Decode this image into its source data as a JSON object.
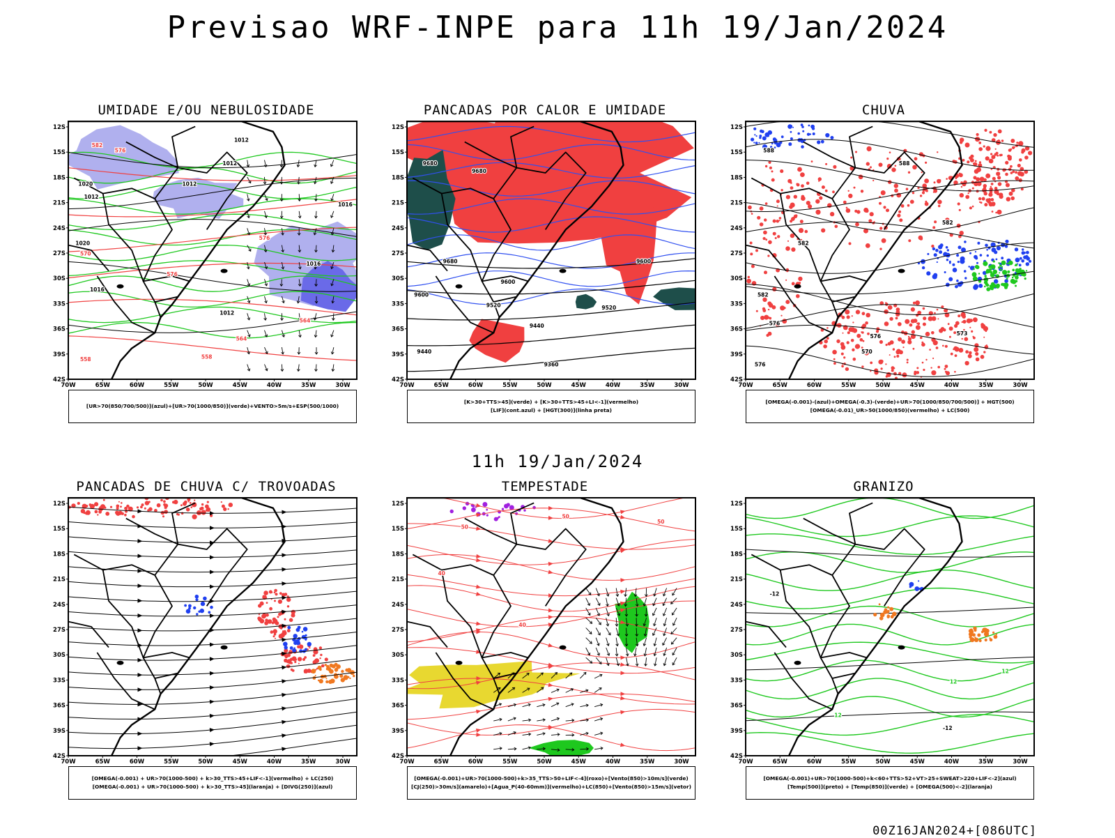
{
  "main_title": "Previsao WRF-INPE  para 11h 19/Jan/2024",
  "mid_date": "11h 19/Jan/2024",
  "footer": "00Z16JAN2024+[086UTC]",
  "colors": {
    "humid_upper": "#b0b0ee",
    "green_contour": "#1ec81e",
    "red_fill": "#f04040",
    "blue_fill": "#2040f0",
    "dark_teal": "#1e4e4a",
    "yellow": "#e8d830",
    "orange": "#f07820",
    "purple": "#a020e0"
  },
  "axes": {
    "lat_labels": [
      "12S",
      "15S",
      "18S",
      "21S",
      "24S",
      "27S",
      "30S",
      "33S",
      "36S",
      "39S",
      "42S"
    ],
    "lon_labels": [
      "70W",
      "65W",
      "60W",
      "55W",
      "50W",
      "45W",
      "40W",
      "35W",
      "30W"
    ]
  },
  "panels": [
    {
      "title": "UMIDADE E/OU NEBULOSIDADE",
      "legend": [
        "[UR>70(850/700/500)](azul)+[UR>70(1000/850)](verde)+VENTO>5m/s+ESP(500/1000)"
      ],
      "contour_labels": [
        "1012",
        "1012",
        "1012",
        "1012",
        "1012",
        "1016",
        "1016",
        "1016",
        "576",
        "576",
        "576",
        "570",
        "564",
        "564",
        "558",
        "558",
        "582",
        "1020",
        "1020"
      ]
    },
    {
      "title": "PANCADAS POR CALOR E UMIDADE",
      "legend": [
        "[K>30+TTS>45](verde) + [K>30+TTS>45+LI<-1](vermelho)",
        "[LIF](cont.azul) + [HGT(300)](linha preta)"
      ],
      "contour_labels": [
        "9680",
        "9680",
        "9680",
        "9600",
        "9600",
        "9600",
        "9520",
        "9520",
        "9440",
        "9440",
        "9360"
      ]
    },
    {
      "title": "CHUVA",
      "legend": [
        "[OMEGA(-0.001)-(azul)+OMEGA(-0.3)-(verde)+UR>70(1000/850/700/500)] + HGT(500)",
        "[OMEGA(-0.01)_UR>50(1000/850)(vermelho) + LC(500)"
      ],
      "contour_labels": [
        "588",
        "588",
        "582",
        "582",
        "582",
        "576",
        "576",
        "576",
        "573",
        "570"
      ]
    },
    {
      "title": "PANCADAS DE CHUVA C/ TROVOADAS",
      "legend": [
        "[OMEGA(-0.001) + UR>70(1000-500) + k>30_TTS>45+LIF<-1](vermelho) + LC(250)",
        "[OMEGA(-0.001) + UR>70(1000-500) + k>30_TTS>45](laranja) + [DIVG(250)](azul)"
      ],
      "contour_labels": []
    },
    {
      "title": "TEMPESTADE",
      "legend": [
        "[OMEGA(-0.001)+UR>70(1000-500)+k>35_TTS>50+LIF<-4](roxo)+[Vento(850)>10m/s](verde)",
        "[CJ(250)>30m/s](amarelo)+[Agua_P(40-60mm)](vermelho)+LC(850)+[Vento(850)>15m/s](vetor)"
      ],
      "contour_labels": [
        "50",
        "50",
        "50",
        "40",
        "40"
      ]
    },
    {
      "title": "GRANIZO",
      "legend": [
        "[OMEGA(-0.001)+UR>70(1000-500)+k<60+TTS>52+VT>25+SWEAT>220+LIF<-2](azul)",
        "[Temp(500)](preto) + [Temp(850)](verde) + [OMEGA(500)<-2](laranja)"
      ],
      "contour_labels": [
        "-12",
        "-12",
        "12",
        "12",
        "12"
      ]
    }
  ]
}
